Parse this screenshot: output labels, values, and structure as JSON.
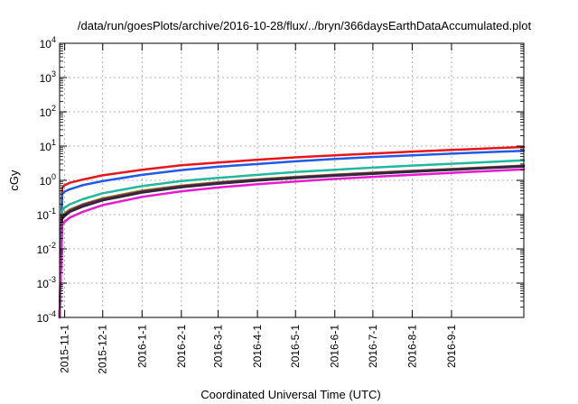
{
  "chart_data": {
    "type": "line",
    "title": "/data/run/goesPlots/archive/2016-10-28/flux/../bryn/366daysEarthDataAccumulated.plot",
    "xlabel": "Coordinated Universal Time (UTC)",
    "ylabel": "cGy",
    "y_scale": "log",
    "ylim": [
      0.0001,
      10000
    ],
    "xlim": [
      "2015-10-28",
      "2016-10-28"
    ],
    "grid": true,
    "legend": "none",
    "x_ticks": [
      "2015-11-1",
      "2015-12-1",
      "2016-1-1",
      "2016-2-1",
      "2016-3-1",
      "2016-4-1",
      "2016-5-1",
      "2016-6-1",
      "2016-7-1",
      "2016-8-1",
      "2016-9-1"
    ],
    "y_ticks": [
      {
        "value": 0.0001,
        "base": "10",
        "exp": "-4"
      },
      {
        "value": 0.001,
        "base": "10",
        "exp": "-3"
      },
      {
        "value": 0.01,
        "base": "10",
        "exp": "-2"
      },
      {
        "value": 0.1,
        "base": "10",
        "exp": "-1"
      },
      {
        "value": 1,
        "base": "10",
        "exp": "0"
      },
      {
        "value": 10,
        "base": "10",
        "exp": "1"
      },
      {
        "value": 100,
        "base": "10",
        "exp": "2"
      },
      {
        "value": 1000,
        "base": "10",
        "exp": "3"
      },
      {
        "value": 10000,
        "base": "10",
        "exp": "4"
      }
    ],
    "x": [
      "2015-10-28",
      "2015-10-30",
      "2015-11-1",
      "2015-11-5",
      "2015-11-15",
      "2015-12-1",
      "2016-1-1",
      "2016-2-1",
      "2016-3-1",
      "2016-4-1",
      "2016-5-1",
      "2016-6-1",
      "2016-7-1",
      "2016-8-1",
      "2016-9-1",
      "2016-10-1",
      "2016-10-28"
    ],
    "series": [
      {
        "color": "#e8151b",
        "values": [
          0.0001,
          0.6,
          0.72,
          0.85,
          1.05,
          1.4,
          2.05,
          2.75,
          3.3,
          4.0,
          4.7,
          5.4,
          6.1,
          6.9,
          7.7,
          8.6,
          9.4
        ]
      },
      {
        "color": "#1f5be6",
        "values": [
          0.0001,
          0.4,
          0.47,
          0.55,
          0.72,
          0.95,
          1.45,
          2.0,
          2.5,
          3.0,
          3.6,
          4.2,
          4.8,
          5.4,
          6.0,
          6.7,
          7.3
        ]
      },
      {
        "color": "#21b8a0",
        "values": [
          0.0001,
          0.13,
          0.16,
          0.2,
          0.28,
          0.42,
          0.68,
          0.95,
          1.18,
          1.45,
          1.75,
          2.05,
          2.35,
          2.7,
          3.05,
          3.45,
          3.85
        ]
      },
      {
        "color": "#8a8a1a",
        "values": [
          0.0001,
          0.09,
          0.11,
          0.14,
          0.2,
          0.3,
          0.5,
          0.7,
          0.88,
          1.07,
          1.27,
          1.47,
          1.67,
          1.9,
          2.15,
          2.42,
          2.7
        ]
      },
      {
        "color": "#7a1a5a",
        "values": [
          0.0001,
          0.085,
          0.1,
          0.13,
          0.19,
          0.28,
          0.47,
          0.67,
          0.85,
          1.03,
          1.23,
          1.43,
          1.63,
          1.85,
          2.1,
          2.38,
          2.65
        ]
      },
      {
        "color": "#2a2a3a",
        "values": [
          0.0001,
          0.075,
          0.09,
          0.12,
          0.17,
          0.26,
          0.44,
          0.63,
          0.8,
          0.98,
          1.17,
          1.36,
          1.56,
          1.78,
          2.02,
          2.3,
          2.55
        ]
      },
      {
        "color": "#e81ad0",
        "values": [
          0.0001,
          0.05,
          0.062,
          0.082,
          0.12,
          0.19,
          0.33,
          0.48,
          0.62,
          0.77,
          0.93,
          1.1,
          1.27,
          1.45,
          1.65,
          1.88,
          2.1
        ]
      }
    ]
  }
}
